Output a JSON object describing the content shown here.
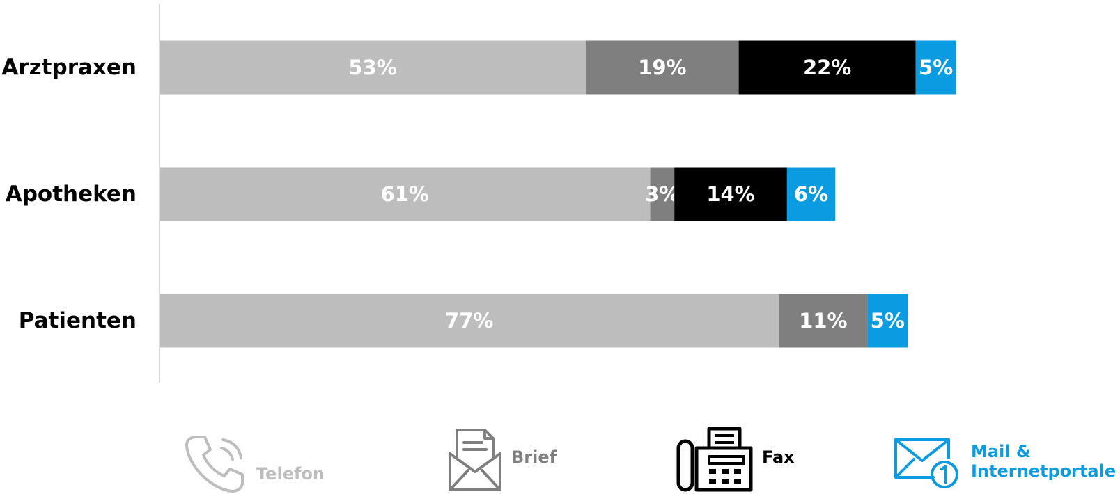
{
  "chart_data": {
    "type": "bar",
    "orientation": "horizontal",
    "stacked": true,
    "categories": [
      "Arztpraxen",
      "Apotheken",
      "Patienten"
    ],
    "series": [
      {
        "name": "Telefon",
        "color": "#bdbdbd",
        "values": [
          53,
          61,
          77
        ],
        "labels": [
          "53%",
          "61%",
          "77%"
        ]
      },
      {
        "name": "Brief",
        "color": "#7f7f7f",
        "values": [
          19,
          3,
          11
        ],
        "labels": [
          "19%",
          "3%",
          "11%"
        ]
      },
      {
        "name": "Fax",
        "color": "#000000",
        "values": [
          22,
          14,
          0
        ],
        "labels": [
          "22%",
          "14%",
          ""
        ]
      },
      {
        "name": "Mail & Internetportale",
        "color": "#0a9be0",
        "values": [
          5,
          6,
          5
        ],
        "labels": [
          "5%",
          "6%",
          "5%"
        ]
      }
    ],
    "xlim": [
      0,
      100
    ],
    "grid": false,
    "legend_position": "bottom"
  },
  "legend": [
    {
      "label": "Telefon",
      "icon": "phone-icon",
      "color": "#bdbdbd"
    },
    {
      "label": "Brief",
      "icon": "letter-icon",
      "color": "#7f7f7f"
    },
    {
      "label": "Fax",
      "icon": "fax-icon",
      "color": "#000000"
    },
    {
      "label": "Mail &\nInternetportale",
      "icon": "mail-icon",
      "color": "#0a9be0"
    }
  ]
}
